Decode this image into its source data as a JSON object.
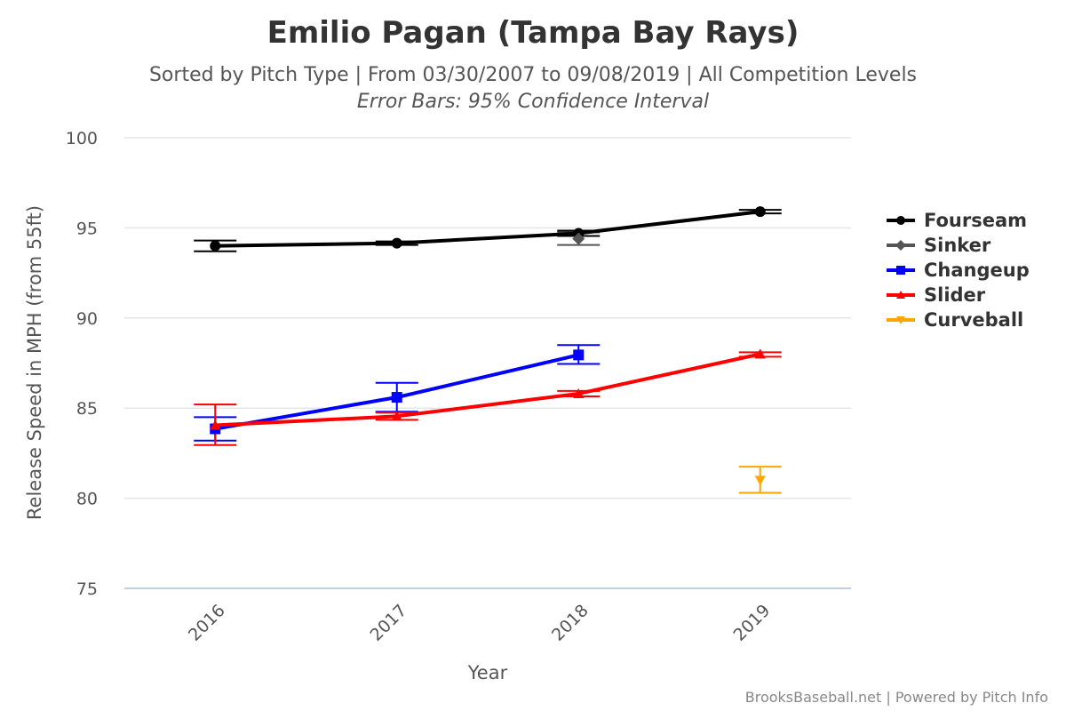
{
  "chart_data": {
    "type": "line",
    "title": "Emilio Pagan (Tampa Bay Rays)",
    "subtitle": "Sorted by Pitch Type | From 03/30/2007 to 09/08/2019 | All Competition Levels",
    "subtitle2": "Error Bars: 95% Confidence Interval",
    "xlabel": "Year",
    "ylabel": "Release Speed in MPH (from 55ft)",
    "categories": [
      "2016",
      "2017",
      "2018",
      "2019"
    ],
    "ylim": [
      75,
      100
    ],
    "yticks": [
      75,
      80,
      85,
      90,
      95,
      100
    ],
    "grid": true,
    "legend_position": "right",
    "series": [
      {
        "name": "Fourseam",
        "color": "#000000",
        "marker": "circle",
        "values": [
          94.0,
          94.15,
          94.7,
          95.9
        ],
        "error_low": [
          93.7,
          94.05,
          94.55,
          95.8
        ],
        "error_high": [
          94.3,
          94.25,
          94.85,
          96.0
        ]
      },
      {
        "name": "Sinker",
        "color": "#555555",
        "marker": "diamond",
        "values": [
          null,
          null,
          94.4,
          null
        ],
        "error_low": [
          null,
          null,
          94.05,
          null
        ],
        "error_high": [
          null,
          null,
          94.75,
          null
        ]
      },
      {
        "name": "Changeup",
        "color": "#0000ff",
        "marker": "square",
        "values": [
          83.85,
          85.6,
          87.95,
          null
        ],
        "error_low": [
          83.2,
          84.8,
          87.45,
          null
        ],
        "error_high": [
          84.5,
          86.4,
          88.5,
          null
        ]
      },
      {
        "name": "Slider",
        "color": "#ff0000",
        "marker": "triangle",
        "values": [
          84.05,
          84.55,
          85.8,
          88.0
        ],
        "error_low": [
          82.95,
          84.35,
          85.65,
          87.85
        ],
        "error_high": [
          85.2,
          84.75,
          85.95,
          88.1
        ]
      },
      {
        "name": "Curveball",
        "color": "#ffa500",
        "marker": "triangle-down",
        "values": [
          null,
          null,
          null,
          81.0
        ],
        "error_low": [
          null,
          null,
          null,
          80.3
        ],
        "error_high": [
          null,
          null,
          null,
          81.75
        ]
      }
    ]
  },
  "credits": "BrooksBaseball.net | Powered by Pitch Info"
}
